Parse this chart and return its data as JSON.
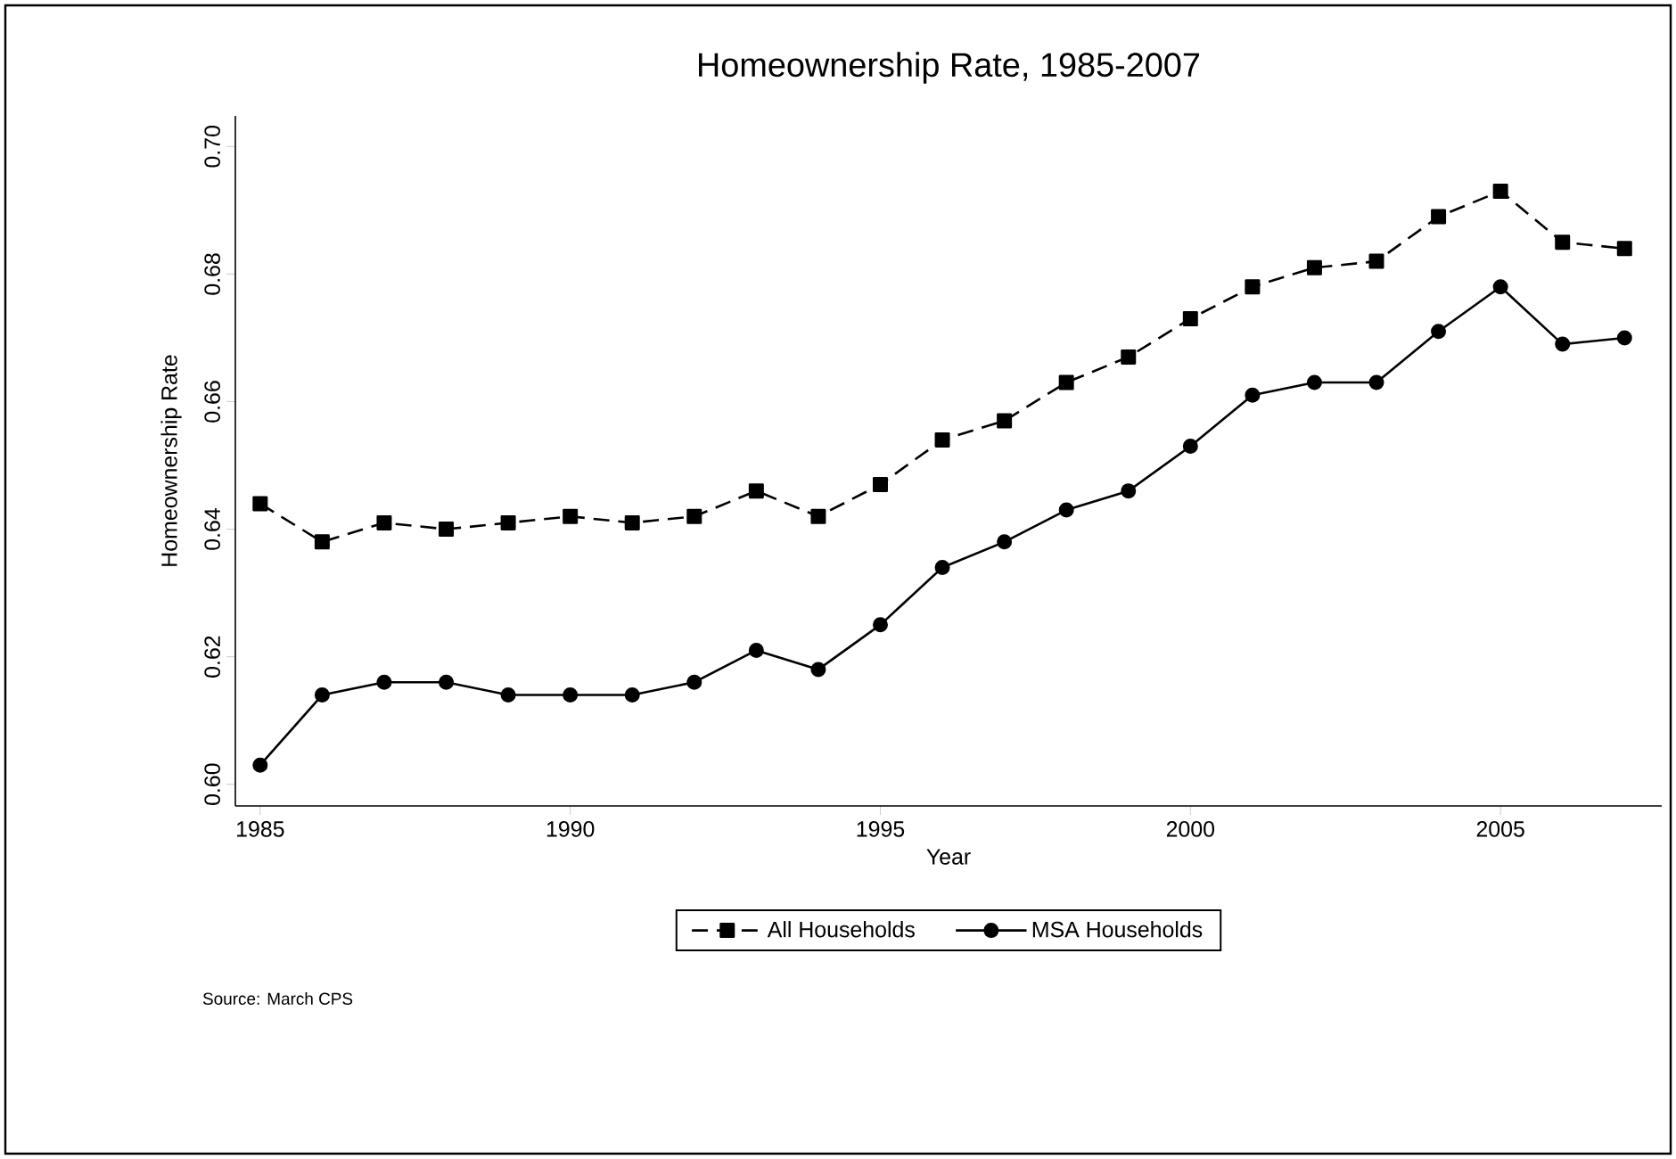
{
  "chart_data": {
    "type": "line",
    "title": "Homeownership Rate, 1985-2007",
    "xlabel": "Year",
    "ylabel": "Homeownership Rate",
    "x": [
      1985,
      1986,
      1987,
      1988,
      1989,
      1990,
      1991,
      1992,
      1993,
      1994,
      1995,
      1996,
      1997,
      1998,
      1999,
      2000,
      2001,
      2002,
      2003,
      2004,
      2005,
      2006,
      2007
    ],
    "series": [
      {
        "name": "All Households",
        "color": "#000000",
        "marker": "square",
        "line_style": "dashed",
        "values": [
          0.644,
          0.638,
          0.641,
          0.64,
          0.641,
          0.642,
          0.641,
          0.642,
          0.646,
          0.642,
          0.647,
          0.654,
          0.657,
          0.663,
          0.667,
          0.673,
          0.678,
          0.681,
          0.682,
          0.689,
          0.693,
          0.685,
          0.684
        ]
      },
      {
        "name": "MSA Households",
        "color": "#000000",
        "marker": "circle",
        "line_style": "solid",
        "values": [
          0.603,
          0.614,
          0.616,
          0.616,
          0.614,
          0.614,
          0.614,
          0.616,
          0.621,
          0.618,
          0.625,
          0.634,
          0.638,
          0.643,
          0.646,
          0.653,
          0.661,
          0.663,
          0.663,
          0.671,
          0.678,
          0.669,
          0.67
        ]
      }
    ],
    "xlim": [
      1984.6,
      2007.6
    ],
    "ylim": [
      0.5966,
      0.7048
    ],
    "xticks": [
      1985,
      1990,
      1995,
      2000,
      2005
    ],
    "yticks": [
      {
        "value": 0.6,
        "label": "0.60"
      },
      {
        "value": 0.62,
        "label": "0.62"
      },
      {
        "value": 0.64,
        "label": "0.64"
      },
      {
        "value": 0.66,
        "label": "0.66"
      },
      {
        "value": 0.68,
        "label": "0.68"
      },
      {
        "value": 0.7,
        "label": "0.70"
      }
    ],
    "legend": "bottom",
    "grid": false,
    "annotations": [
      "Source: March CPS"
    ]
  }
}
